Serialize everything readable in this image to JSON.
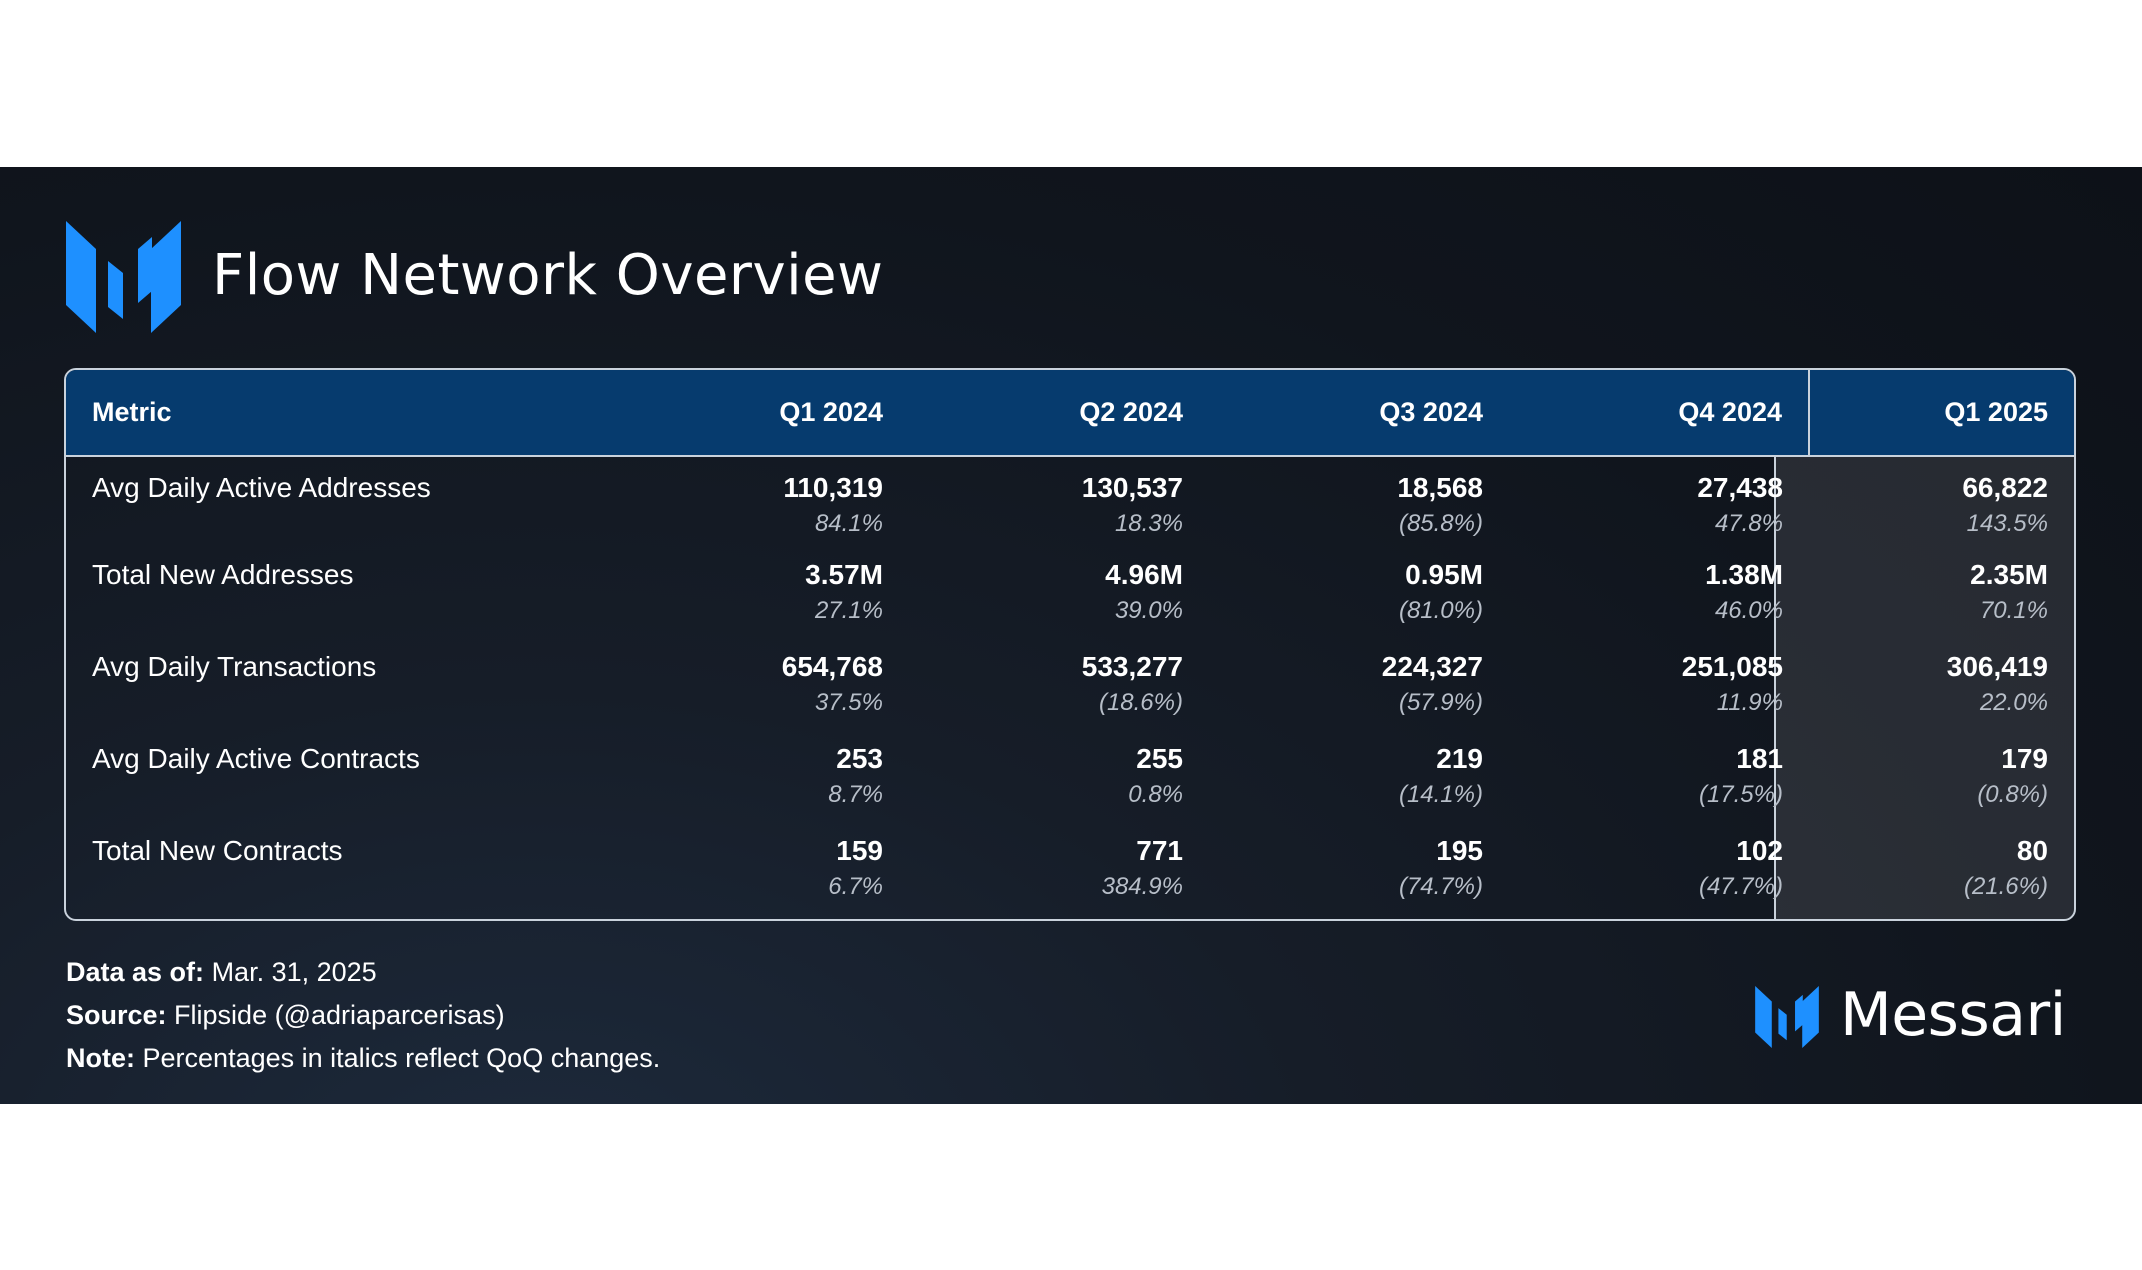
{
  "title": "Flow Network Overview",
  "colors": {
    "header_bg": "#063b6e",
    "accent_blue": "#1e90ff",
    "panel_bg": "#131a24"
  },
  "table": {
    "headers": [
      "Metric",
      "Q1 2024",
      "Q2 2024",
      "Q3 2024",
      "Q4 2024",
      "Q1 2025"
    ],
    "rows": [
      {
        "metric": "Avg Daily Active Addresses",
        "values": [
          "110,319",
          "130,537",
          "18,568",
          "27,438",
          "66,822"
        ],
        "changes": [
          "84.1%",
          "18.3%",
          "(85.8%)",
          "47.8%",
          "143.5%"
        ]
      },
      {
        "metric": "Total New Addresses",
        "values": [
          "3.57M",
          "4.96M",
          "0.95M",
          "1.38M",
          "2.35M"
        ],
        "changes": [
          "27.1%",
          "39.0%",
          "(81.0%)",
          "46.0%",
          "70.1%"
        ]
      },
      {
        "metric": "Avg Daily Transactions",
        "values": [
          "654,768",
          "533,277",
          "224,327",
          "251,085",
          "306,419"
        ],
        "changes": [
          "37.5%",
          "(18.6%)",
          "(57.9%)",
          "11.9%",
          "22.0%"
        ]
      },
      {
        "metric": "Avg Daily Active Contracts",
        "values": [
          "253",
          "255",
          "219",
          "181",
          "179"
        ],
        "changes": [
          "8.7%",
          "0.8%",
          "(14.1%)",
          "(17.5%)",
          "(0.8%)"
        ]
      },
      {
        "metric": "Total New Contracts",
        "values": [
          "159",
          "771",
          "195",
          "102",
          "80"
        ],
        "changes": [
          "6.7%",
          "384.9%",
          "(74.7%)",
          "(47.7%)",
          "(21.6%)"
        ]
      }
    ]
  },
  "chart_data": {
    "type": "table",
    "title": "Flow Network Overview",
    "columns": [
      "Metric",
      "Q1 2024",
      "Q2 2024",
      "Q3 2024",
      "Q4 2024",
      "Q1 2025"
    ],
    "rows": [
      [
        "Avg Daily Active Addresses",
        "110,319",
        "130,537",
        "18,568",
        "27,438",
        "66,822"
      ],
      [
        "Total New Addresses",
        "3.57M",
        "4.96M",
        "0.95M",
        "1.38M",
        "2.35M"
      ],
      [
        "Avg Daily Transactions",
        "654,768",
        "533,277",
        "224,327",
        "251,085",
        "306,419"
      ],
      [
        "Avg Daily Active Contracts",
        "253",
        "255",
        "219",
        "181",
        "179"
      ],
      [
        "Total New Contracts",
        "159",
        "771",
        "195",
        "102",
        "80"
      ]
    ],
    "qoq_changes": [
      [
        "84.1%",
        "18.3%",
        "(85.8%)",
        "47.8%",
        "143.5%"
      ],
      [
        "27.1%",
        "39.0%",
        "(81.0%)",
        "46.0%",
        "70.1%"
      ],
      [
        "37.5%",
        "(18.6%)",
        "(57.9%)",
        "11.9%",
        "22.0%"
      ],
      [
        "8.7%",
        "0.8%",
        "(14.1%)",
        "(17.5%)",
        "(0.8%)"
      ],
      [
        "6.7%",
        "384.9%",
        "(74.7%)",
        "(47.7%)",
        "(21.6%)"
      ]
    ]
  },
  "footer": {
    "date_label": "Data as of:",
    "date_value": "Mar. 31, 2025",
    "source_label": "Source:",
    "source_value": "Flipside (@adriaparcerisas)",
    "note_label": "Note:",
    "note_value": "Percentages in italics reflect QoQ changes."
  },
  "brand": {
    "name": "Messari",
    "logo_icon": "messari-logo-icon"
  }
}
